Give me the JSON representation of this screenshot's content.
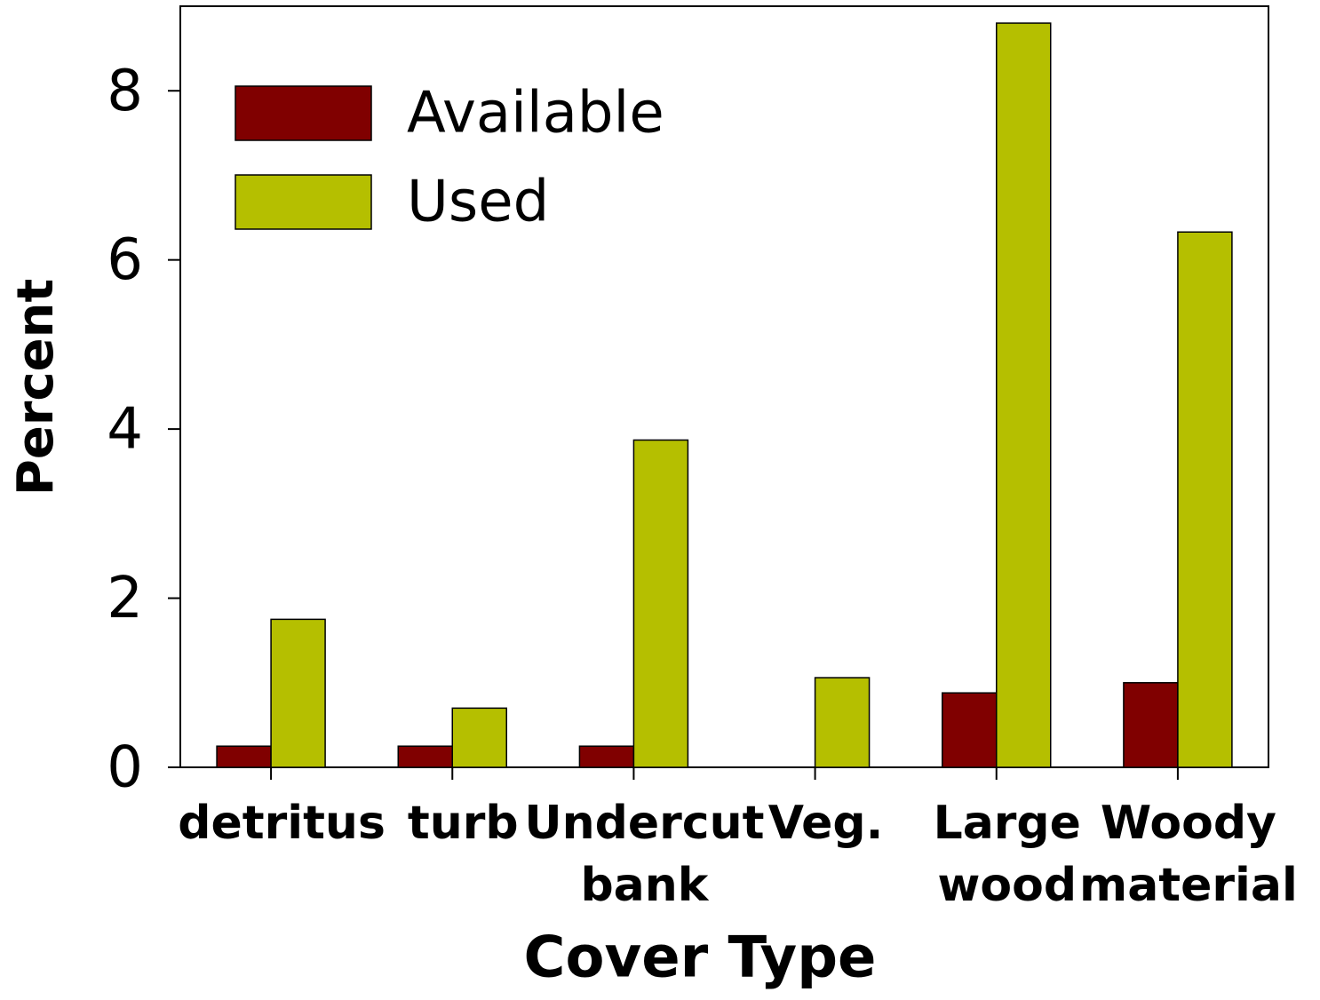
{
  "chart_data": {
    "type": "bar",
    "xlabel": "Cover Type",
    "ylabel": "Percent",
    "categories": [
      "detritus",
      "turb",
      "Undercut\nbank",
      "Veg.",
      "Large\nwood",
      "Woody\nmaterial"
    ],
    "series": [
      {
        "name": "Available",
        "color": "#800000",
        "values": [
          0.25,
          0.25,
          0.25,
          0,
          0.88,
          1.0
        ]
      },
      {
        "name": "Used",
        "color": "#b5bf00",
        "values": [
          1.75,
          0.7,
          3.87,
          1.06,
          8.8,
          6.33
        ]
      }
    ],
    "ylim": [
      0,
      9
    ],
    "yticks": [
      0,
      2,
      4,
      6,
      8
    ],
    "legend": "upper left"
  }
}
